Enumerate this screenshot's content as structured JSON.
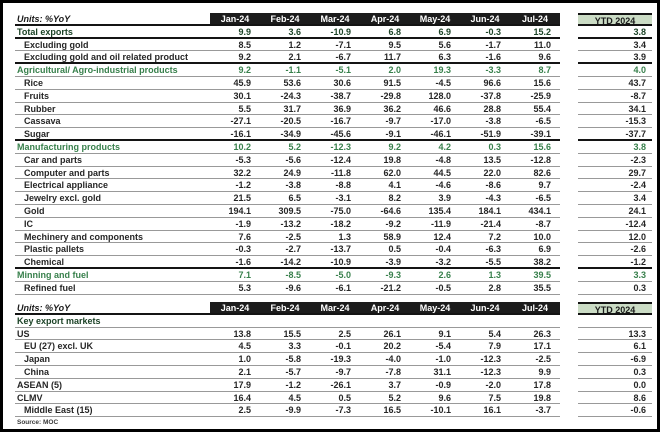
{
  "source": "Source: MOC",
  "columns": {
    "label_header": "Units: %YoY",
    "months": [
      "Jan-24",
      "Feb-24",
      "Mar-24",
      "Apr-24",
      "May-24",
      "Jun-24",
      "Jul-24"
    ],
    "ytd_header": "YTD 2024"
  },
  "colors": {
    "header_bg": "#1c1c1c",
    "header_text": "#ffffff",
    "ytd_header_bg": "#cbdcc5",
    "total_row_text": "#1c4327",
    "section_row_text": "#38804c",
    "item_row_text": "#262626",
    "thin_border": "#999999",
    "thick_border": "#141414"
  },
  "export_table": {
    "rows": [
      {
        "label": "Total exports",
        "style": "total",
        "indent": 0,
        "border": "thick",
        "values": [
          "9.9",
          "3.6",
          "-10.9",
          "6.8",
          "6.9",
          "-0.3",
          "15.2"
        ],
        "ytd": "3.8"
      },
      {
        "label": "Excluding gold",
        "style": "item",
        "indent": 1,
        "border": "thin",
        "values": [
          "8.5",
          "1.2",
          "-7.1",
          "9.5",
          "5.6",
          "-1.7",
          "11.0"
        ],
        "ytd": "3.4"
      },
      {
        "label": "Excluding gold and oil related product",
        "style": "item",
        "indent": 1,
        "border": "thick",
        "values": [
          "9.2",
          "2.1",
          "-6.7",
          "11.7",
          "6.3",
          "-1.6",
          "9.6"
        ],
        "ytd": "3.9"
      },
      {
        "label": "Agricultural/ Agro-industrial products",
        "style": "section",
        "indent": 0,
        "border": "thin",
        "values": [
          "9.2",
          "-1.1",
          "-5.1",
          "2.0",
          "19.3",
          "-3.3",
          "8.7"
        ],
        "ytd": "4.0"
      },
      {
        "label": "Rice",
        "style": "item",
        "indent": 1,
        "border": "thin",
        "values": [
          "45.9",
          "53.6",
          "30.6",
          "91.5",
          "-4.5",
          "96.6",
          "15.6"
        ],
        "ytd": "43.7"
      },
      {
        "label": "Fruits",
        "style": "item",
        "indent": 1,
        "border": "thin",
        "values": [
          "30.1",
          "-24.3",
          "-38.7",
          "-29.8",
          "128.0",
          "-37.8",
          "-25.9"
        ],
        "ytd": "-8.7"
      },
      {
        "label": "Rubber",
        "style": "item",
        "indent": 1,
        "border": "thin",
        "values": [
          "5.5",
          "31.7",
          "36.9",
          "36.2",
          "46.6",
          "28.8",
          "55.4"
        ],
        "ytd": "34.1"
      },
      {
        "label": "Cassava",
        "style": "item",
        "indent": 1,
        "border": "thin",
        "values": [
          "-27.1",
          "-20.5",
          "-16.7",
          "-9.7",
          "-17.0",
          "-3.8",
          "-6.5"
        ],
        "ytd": "-15.3"
      },
      {
        "label": "Sugar",
        "style": "item",
        "indent": 1,
        "border": "thick",
        "values": [
          "-16.1",
          "-34.9",
          "-45.6",
          "-9.1",
          "-46.1",
          "-51.9",
          "-39.1"
        ],
        "ytd": "-37.7"
      },
      {
        "label": "Manufacturing products",
        "style": "section",
        "indent": 0,
        "border": "thin",
        "values": [
          "10.2",
          "5.2",
          "-12.3",
          "9.2",
          "4.2",
          "0.3",
          "15.6"
        ],
        "ytd": "3.8"
      },
      {
        "label": "Car and parts",
        "style": "item",
        "indent": 1,
        "border": "thin",
        "values": [
          "-5.3",
          "-5.6",
          "-12.4",
          "19.8",
          "-4.8",
          "13.5",
          "-12.8"
        ],
        "ytd": "-2.3"
      },
      {
        "label": "Computer and parts",
        "style": "item",
        "indent": 1,
        "border": "thin",
        "values": [
          "32.2",
          "24.9",
          "-11.8",
          "62.0",
          "44.5",
          "22.0",
          "82.6"
        ],
        "ytd": "29.7"
      },
      {
        "label": "Electrical appliance",
        "style": "item",
        "indent": 1,
        "border": "thin",
        "values": [
          "-1.2",
          "-3.8",
          "-8.8",
          "4.1",
          "-4.6",
          "-8.6",
          "9.7"
        ],
        "ytd": "-2.4"
      },
      {
        "label": "Jewelry excl. gold",
        "style": "item",
        "indent": 1,
        "border": "thin",
        "values": [
          "21.5",
          "6.5",
          "-3.1",
          "8.2",
          "3.9",
          "-4.3",
          "-6.5"
        ],
        "ytd": "3.4"
      },
      {
        "label": "Gold",
        "style": "item",
        "indent": 1,
        "border": "thin",
        "values": [
          "194.1",
          "309.5",
          "-75.0",
          "-64.6",
          "135.4",
          "184.1",
          "434.1"
        ],
        "ytd": "24.1"
      },
      {
        "label": "IC",
        "style": "item",
        "indent": 1,
        "border": "thin",
        "values": [
          "-1.9",
          "-13.2",
          "-18.2",
          "-9.2",
          "-11.9",
          "-21.4",
          "-8.7"
        ],
        "ytd": "-12.4"
      },
      {
        "label": "Mechinery and components",
        "style": "item",
        "indent": 1,
        "border": "thin",
        "values": [
          "7.6",
          "-2.5",
          "1.3",
          "58.9",
          "12.4",
          "7.2",
          "10.0"
        ],
        "ytd": "12.0"
      },
      {
        "label": "Plastic pallets",
        "style": "item",
        "indent": 1,
        "border": "thin",
        "values": [
          "-0.3",
          "-2.7",
          "-13.7",
          "0.5",
          "-0.4",
          "-6.3",
          "6.9"
        ],
        "ytd": "-2.6"
      },
      {
        "label": "Chemical",
        "style": "item",
        "indent": 1,
        "border": "thick",
        "values": [
          "-1.6",
          "-14.2",
          "-10.9",
          "-3.9",
          "-3.2",
          "-5.5",
          "38.2"
        ],
        "ytd": "-1.2"
      },
      {
        "label": "Minning and fuel",
        "style": "section",
        "indent": 0,
        "border": "thin",
        "values": [
          "7.1",
          "-8.5",
          "-5.0",
          "-9.3",
          "2.6",
          "1.3",
          "39.5"
        ],
        "ytd": "3.3"
      },
      {
        "label": "Refined fuel",
        "style": "item",
        "indent": 1,
        "border": "thin",
        "values": [
          "5.3",
          "-9.6",
          "-6.1",
          "-21.2",
          "-0.5",
          "2.8",
          "35.5"
        ],
        "ytd": "0.3"
      }
    ]
  },
  "markets_table": {
    "rows": [
      {
        "label": "Key export markets",
        "style": "total",
        "indent": 0,
        "border": "thin",
        "values": [
          "",
          "",
          "",
          "",
          "",
          "",
          ""
        ],
        "ytd": ""
      },
      {
        "label": "US",
        "style": "item",
        "indent": 0,
        "border": "thin",
        "values": [
          "13.8",
          "15.5",
          "2.5",
          "26.1",
          "9.1",
          "5.4",
          "26.3"
        ],
        "ytd": "13.3"
      },
      {
        "label": "EU (27) excl. UK",
        "style": "item",
        "indent": 1,
        "border": "thin",
        "values": [
          "4.5",
          "3.3",
          "-0.1",
          "20.2",
          "-5.4",
          "7.9",
          "17.1"
        ],
        "ytd": "6.1"
      },
      {
        "label": "Japan",
        "style": "item",
        "indent": 1,
        "border": "thin",
        "values": [
          "1.0",
          "-5.8",
          "-19.3",
          "-4.0",
          "-1.0",
          "-12.3",
          "-2.5"
        ],
        "ytd": "-6.9"
      },
      {
        "label": "China",
        "style": "item",
        "indent": 1,
        "border": "thin",
        "values": [
          "2.1",
          "-5.7",
          "-9.7",
          "-7.8",
          "31.1",
          "-12.3",
          "9.9"
        ],
        "ytd": "0.3"
      },
      {
        "label": "ASEAN (5)",
        "style": "item",
        "indent": 0,
        "border": "thin",
        "values": [
          "17.9",
          "-1.2",
          "-26.1",
          "3.7",
          "-0.9",
          "-2.0",
          "17.8"
        ],
        "ytd": "0.0"
      },
      {
        "label": "CLMV",
        "style": "item",
        "indent": 0,
        "border": "thin",
        "values": [
          "16.4",
          "4.5",
          "0.5",
          "5.2",
          "9.6",
          "7.5",
          "19.8"
        ],
        "ytd": "8.6"
      },
      {
        "label": "Middle East (15)",
        "style": "item",
        "indent": 1,
        "border": "thin",
        "values": [
          "2.5",
          "-9.9",
          "-7.3",
          "16.5",
          "-10.1",
          "16.1",
          "-3.7"
        ],
        "ytd": "-0.6"
      }
    ]
  }
}
